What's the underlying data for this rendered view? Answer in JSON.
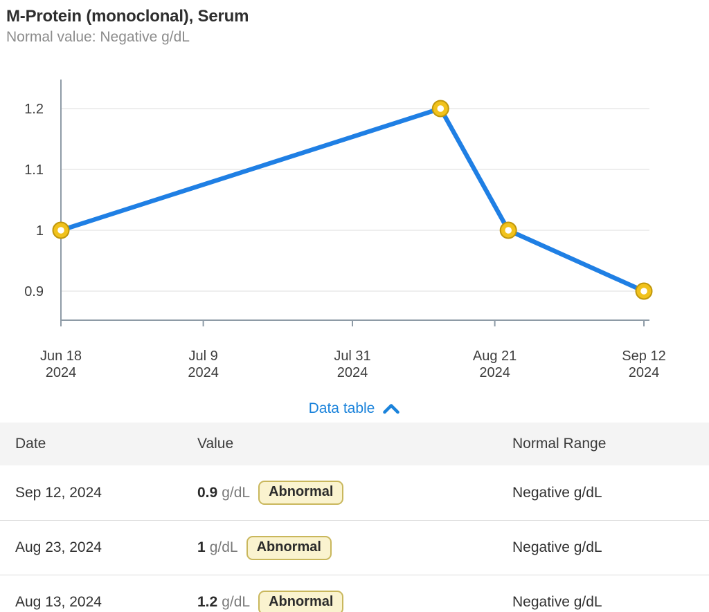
{
  "header": {
    "title": "M-Protein (monoclonal), Serum",
    "subtitle": "Normal value: Negative g/dL"
  },
  "colors": {
    "accent_blue": "#1b83db",
    "line_blue": "#1f7fe4",
    "marker_gold": "#f1c21c",
    "marker_gold_border": "#c0970b",
    "grid_gray": "#e8e8e8",
    "axis_gray": "#8e9ba6",
    "tick_text": "#3d3d3d",
    "badge_bg": "#faf3cf",
    "badge_border": "#c9b75c",
    "table_header_bg": "#f4f4f4"
  },
  "chart_data": {
    "type": "line",
    "title": "M-Protein (monoclonal), Serum",
    "xlabel": "",
    "ylabel": "g/dL",
    "ylim": [
      0.855,
      1.245
    ],
    "y_ticks": [
      0.9,
      1,
      1.1,
      1.2
    ],
    "x_ticks": [
      {
        "label": [
          "Jun 18",
          "2024"
        ],
        "day": 0
      },
      {
        "label": [
          "Jul 9",
          "2024"
        ],
        "day": 21
      },
      {
        "label": [
          "Jul 31",
          "2024"
        ],
        "day": 43
      },
      {
        "label": [
          "Aug 21",
          "2024"
        ],
        "day": 64
      },
      {
        "label": [
          "Sep 12",
          "2024"
        ],
        "day": 86
      }
    ],
    "day_range": [
      0,
      86
    ],
    "points": [
      {
        "date": "Jun 18, 2024",
        "day": 0,
        "value": 1
      },
      {
        "date": "Aug 13, 2024",
        "day": 56,
        "value": 1.2
      },
      {
        "date": "Aug 23, 2024",
        "day": 66,
        "value": 1
      },
      {
        "date": "Sep 12, 2024",
        "day": 86,
        "value": 0.9
      }
    ],
    "grid": true,
    "legend": "none"
  },
  "data_table_toggle": {
    "label": "Data table",
    "icon": "chevron-up-icon",
    "expanded": true
  },
  "table": {
    "columns": [
      "Date",
      "Value",
      "Normal Range"
    ],
    "rows": [
      {
        "date": "Sep 12, 2024",
        "value": "0.9",
        "unit": "g/dL",
        "flag": "Abnormal",
        "normal_range": "Negative g/dL"
      },
      {
        "date": "Aug 23, 2024",
        "value": "1",
        "unit": "g/dL",
        "flag": "Abnormal",
        "normal_range": "Negative g/dL"
      },
      {
        "date": "Aug 13, 2024",
        "value": "1.2",
        "unit": "g/dL",
        "flag": "Abnormal",
        "normal_range": "Negative g/dL"
      }
    ]
  }
}
